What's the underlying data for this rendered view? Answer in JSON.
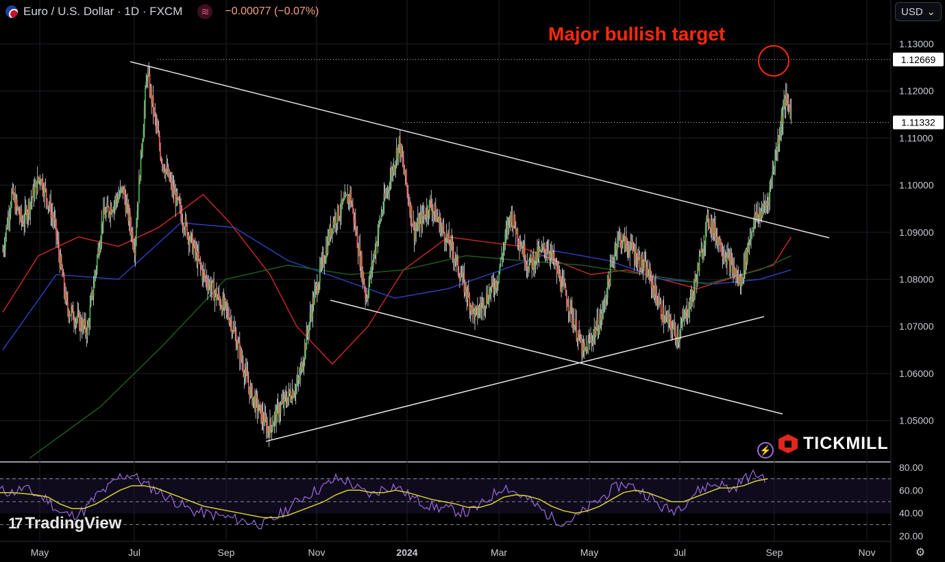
{
  "header": {
    "symbol": "Euro / U.S. Dollar · 1D · FXCM",
    "change": "−0.00077 (−0.07%)",
    "wave_icon": "wave-icon",
    "flag_icon": "eu-us-flag-icon"
  },
  "currency_select": {
    "label": "USD",
    "icon": "chevron-down-icon"
  },
  "annotation": {
    "text": "Major bullish target"
  },
  "brands": {
    "tradingview": "TradingView",
    "tickmill": "TICKMILL"
  },
  "colors": {
    "up": "#4caf50",
    "down": "#ef5350",
    "ma_fast": "#c62828",
    "ma_mid": "#2a3fb8",
    "ma_slow": "#1b5e20",
    "rsi": "#9c6ce0",
    "rsi_ma": "#d4d42a",
    "target": "#ff2a0a"
  },
  "chart_data": [
    {
      "type": "candlestick",
      "title": "Euro / U.S. Dollar · 1D · FXCM",
      "x_ticks": [
        "May",
        "Jul",
        "Sep",
        "Nov",
        "2024",
        "Mar",
        "May",
        "Jul",
        "Sep",
        "Nov"
      ],
      "y_ticks": [
        "1.05000",
        "1.06000",
        "1.07000",
        "1.08000",
        "1.09000",
        "1.10000",
        "1.11000",
        "1.12000",
        "1.13000"
      ],
      "ylim": [
        1.0415,
        1.1335
      ],
      "price_labels": [
        "1.12669",
        "1.11332"
      ],
      "horizontal_levels": [
        1.12669,
        1.11332
      ],
      "anchors": [
        {
          "x": 0,
          "y": 1.086
        },
        {
          "x": 10,
          "y": 1.098
        },
        {
          "x": 22,
          "y": 1.092
        },
        {
          "x": 42,
          "y": 1.102
        },
        {
          "x": 58,
          "y": 1.092
        },
        {
          "x": 72,
          "y": 1.074
        },
        {
          "x": 95,
          "y": 1.069
        },
        {
          "x": 112,
          "y": 1.093
        },
        {
          "x": 135,
          "y": 1.099
        },
        {
          "x": 148,
          "y": 1.087
        },
        {
          "x": 162,
          "y": 1.124
        },
        {
          "x": 178,
          "y": 1.106
        },
        {
          "x": 200,
          "y": 1.094
        },
        {
          "x": 225,
          "y": 1.081
        },
        {
          "x": 255,
          "y": 1.072
        },
        {
          "x": 278,
          "y": 1.056
        },
        {
          "x": 298,
          "y": 1.048
        },
        {
          "x": 312,
          "y": 1.053
        },
        {
          "x": 332,
          "y": 1.058
        },
        {
          "x": 348,
          "y": 1.075
        },
        {
          "x": 370,
          "y": 1.092
        },
        {
          "x": 390,
          "y": 1.098
        },
        {
          "x": 408,
          "y": 1.076
        },
        {
          "x": 425,
          "y": 1.094
        },
        {
          "x": 445,
          "y": 1.109
        },
        {
          "x": 462,
          "y": 1.09
        },
        {
          "x": 480,
          "y": 1.096
        },
        {
          "x": 505,
          "y": 1.086
        },
        {
          "x": 530,
          "y": 1.072
        },
        {
          "x": 555,
          "y": 1.08
        },
        {
          "x": 570,
          "y": 1.094
        },
        {
          "x": 590,
          "y": 1.083
        },
        {
          "x": 612,
          "y": 1.087
        },
        {
          "x": 635,
          "y": 1.075
        },
        {
          "x": 652,
          "y": 1.064
        },
        {
          "x": 672,
          "y": 1.072
        },
        {
          "x": 690,
          "y": 1.089
        },
        {
          "x": 708,
          "y": 1.086
        },
        {
          "x": 725,
          "y": 1.081
        },
        {
          "x": 742,
          "y": 1.072
        },
        {
          "x": 758,
          "y": 1.068
        },
        {
          "x": 775,
          "y": 1.077
        },
        {
          "x": 792,
          "y": 1.093
        },
        {
          "x": 812,
          "y": 1.085
        },
        {
          "x": 828,
          "y": 1.079
        },
        {
          "x": 842,
          "y": 1.092
        },
        {
          "x": 858,
          "y": 1.096
        },
        {
          "x": 878,
          "y": 1.118
        },
        {
          "x": 885,
          "y": 1.116
        }
      ],
      "overlays": {
        "ma_fast": [
          {
            "x": 0,
            "y": 1.073
          },
          {
            "x": 40,
            "y": 1.085
          },
          {
            "x": 85,
            "y": 1.089
          },
          {
            "x": 130,
            "y": 1.087
          },
          {
            "x": 175,
            "y": 1.091
          },
          {
            "x": 225,
            "y": 1.098
          },
          {
            "x": 255,
            "y": 1.092
          },
          {
            "x": 300,
            "y": 1.081
          },
          {
            "x": 330,
            "y": 1.07
          },
          {
            "x": 370,
            "y": 1.062
          },
          {
            "x": 410,
            "y": 1.07
          },
          {
            "x": 450,
            "y": 1.082
          },
          {
            "x": 500,
            "y": 1.089
          },
          {
            "x": 540,
            "y": 1.088
          },
          {
            "x": 580,
            "y": 1.087
          },
          {
            "x": 620,
            "y": 1.084
          },
          {
            "x": 660,
            "y": 1.081
          },
          {
            "x": 700,
            "y": 1.082
          },
          {
            "x": 740,
            "y": 1.08
          },
          {
            "x": 780,
            "y": 1.078
          },
          {
            "x": 830,
            "y": 1.081
          },
          {
            "x": 865,
            "y": 1.083
          },
          {
            "x": 885,
            "y": 1.089
          }
        ],
        "ma_mid": [
          {
            "x": 0,
            "y": 1.065
          },
          {
            "x": 60,
            "y": 1.081
          },
          {
            "x": 130,
            "y": 1.08
          },
          {
            "x": 200,
            "y": 1.092
          },
          {
            "x": 260,
            "y": 1.091
          },
          {
            "x": 320,
            "y": 1.084
          },
          {
            "x": 380,
            "y": 1.08
          },
          {
            "x": 440,
            "y": 1.076
          },
          {
            "x": 500,
            "y": 1.078
          },
          {
            "x": 560,
            "y": 1.082
          },
          {
            "x": 620,
            "y": 1.086
          },
          {
            "x": 680,
            "y": 1.084
          },
          {
            "x": 740,
            "y": 1.08
          },
          {
            "x": 800,
            "y": 1.079
          },
          {
            "x": 850,
            "y": 1.08
          },
          {
            "x": 885,
            "y": 1.082
          }
        ],
        "ma_slow": [
          {
            "x": 30,
            "y": 1.042
          },
          {
            "x": 110,
            "y": 1.053
          },
          {
            "x": 180,
            "y": 1.066
          },
          {
            "x": 250,
            "y": 1.08
          },
          {
            "x": 320,
            "y": 1.083
          },
          {
            "x": 390,
            "y": 1.081
          },
          {
            "x": 450,
            "y": 1.082
          },
          {
            "x": 520,
            "y": 1.085
          },
          {
            "x": 580,
            "y": 1.084
          },
          {
            "x": 650,
            "y": 1.083
          },
          {
            "x": 720,
            "y": 1.081
          },
          {
            "x": 790,
            "y": 1.079
          },
          {
            "x": 850,
            "y": 1.082
          },
          {
            "x": 885,
            "y": 1.085
          }
        ]
      }
    },
    {
      "type": "line",
      "title": "RSI",
      "y_ticks": [
        "20.00",
        "40.00",
        "60.00",
        "80.00"
      ],
      "ylim": [
        20,
        80
      ],
      "levels": [
        70,
        50,
        30
      ],
      "series": [
        {
          "values": [
            60,
            58,
            62,
            56,
            52,
            40,
            38,
            42,
            55,
            62,
            72,
            74,
            66,
            60,
            54,
            48,
            42,
            40,
            38,
            36,
            34,
            32,
            30,
            36,
            44,
            52,
            58,
            63,
            70,
            68,
            60,
            56,
            62,
            64,
            56,
            50,
            46,
            44,
            42,
            40,
            46,
            55,
            64,
            58,
            52,
            44,
            36,
            32,
            36,
            44,
            52,
            60,
            66,
            62,
            56,
            46,
            42,
            48,
            58,
            64,
            66,
            60,
            70,
            74,
            71
          ]
        },
        {
          "values": [
            58,
            58,
            57,
            56,
            54,
            48,
            44,
            44,
            48,
            54,
            60,
            64,
            64,
            62,
            58,
            54,
            50,
            46,
            44,
            42,
            40,
            38,
            36,
            36,
            38,
            42,
            46,
            50,
            56,
            60,
            60,
            58,
            58,
            60,
            58,
            55,
            52,
            50,
            48,
            45,
            45,
            48,
            54,
            56,
            55,
            52,
            46,
            42,
            40,
            42,
            46,
            52,
            58,
            60,
            58,
            54,
            50,
            50,
            54,
            58,
            62,
            62,
            64,
            68,
            70
          ]
        }
      ]
    }
  ]
}
